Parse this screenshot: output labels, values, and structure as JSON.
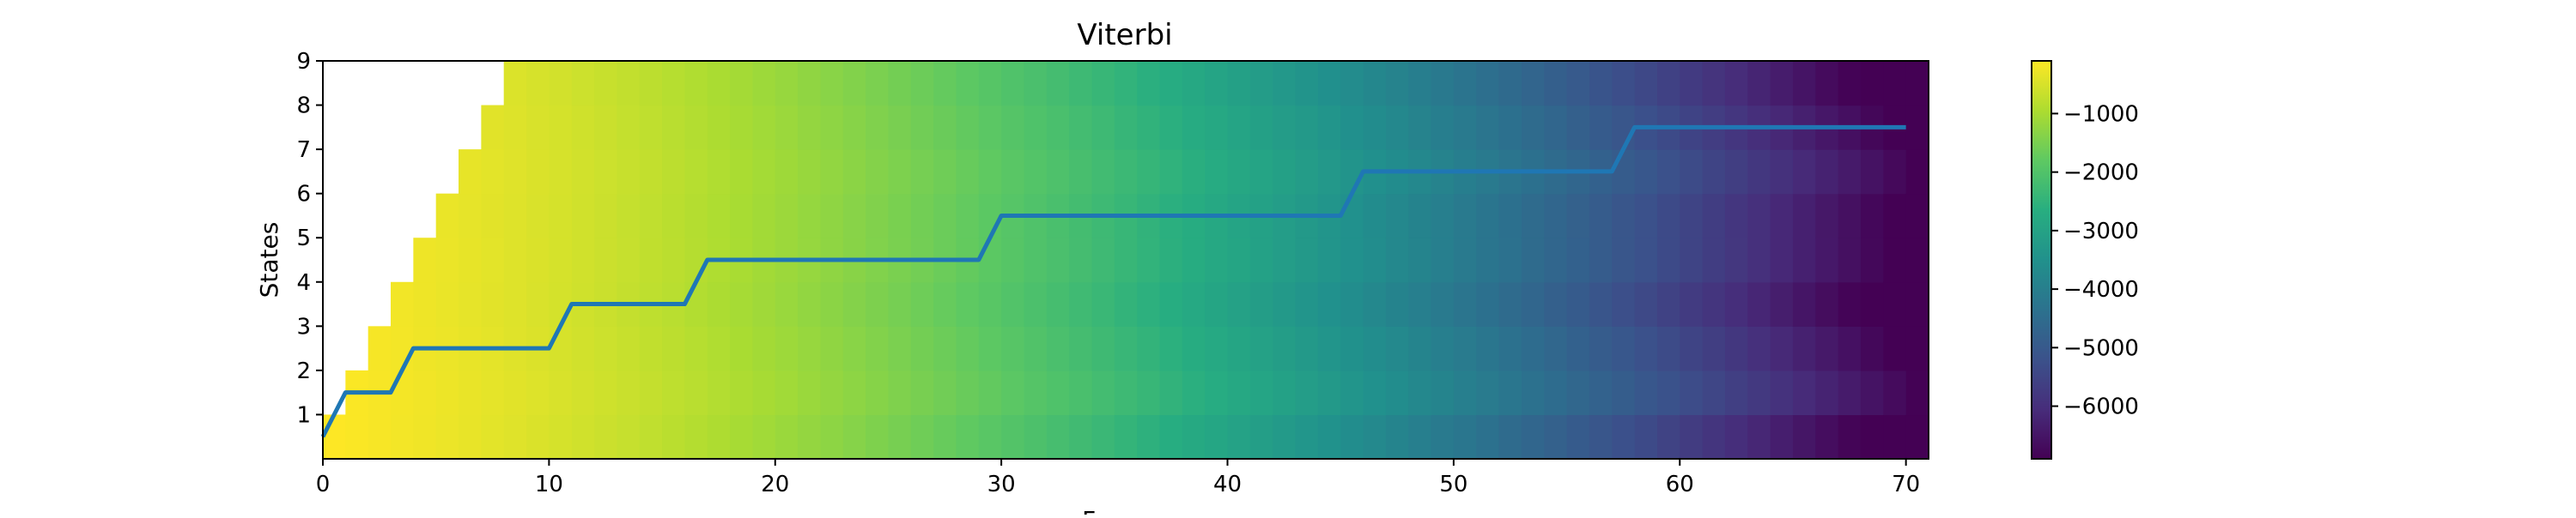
{
  "chart_data": {
    "type": "heatmap",
    "title": "Viterbi",
    "xlabel": "Frames",
    "ylabel": "States",
    "x_ticks": [
      0,
      10,
      20,
      30,
      40,
      50,
      60,
      70
    ],
    "y_ticks": [
      1,
      2,
      3,
      4,
      5,
      6,
      7,
      8,
      9
    ],
    "xlim": [
      0,
      71
    ],
    "ylim": [
      0,
      9
    ],
    "n_frames": 71,
    "n_states": 9,
    "colormap": "viridis",
    "color_range": [
      -6900,
      -100
    ],
    "colorbar_ticks": [
      -1000,
      -2000,
      -3000,
      -4000,
      -5000,
      -6000
    ],
    "colorbar_tick_labels": [
      "−1000",
      "−2000",
      "−3000",
      "−4000",
      "−5000",
      "−6000"
    ],
    "masked_cells_note": "upper-left triangle (state index > frame index) is blank",
    "viterbi_path": {
      "color": "#1f77b4",
      "states_by_frame": [
        0,
        1,
        1,
        1,
        2,
        2,
        2,
        2,
        2,
        2,
        2,
        3,
        3,
        3,
        3,
        3,
        3,
        4,
        4,
        4,
        4,
        4,
        4,
        4,
        4,
        4,
        4,
        4,
        4,
        4,
        5,
        5,
        5,
        5,
        5,
        5,
        5,
        5,
        5,
        5,
        5,
        5,
        5,
        5,
        5,
        5,
        6,
        6,
        6,
        6,
        6,
        6,
        6,
        6,
        6,
        6,
        6,
        6,
        7,
        7,
        7,
        7,
        7,
        7,
        7,
        7,
        7,
        7,
        7,
        7,
        7
      ]
    }
  }
}
